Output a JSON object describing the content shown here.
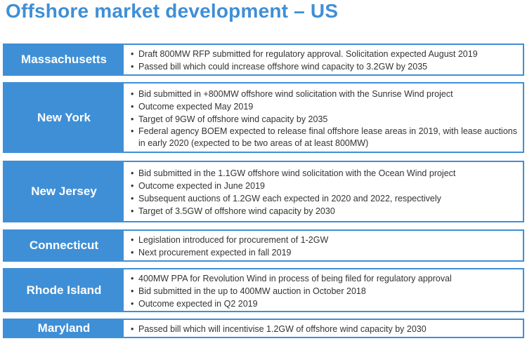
{
  "title": "Offshore market development – US",
  "accent_color": "#3f8fd6",
  "bullet_glyph": "•",
  "states": [
    {
      "name": "Massachusetts",
      "bullets": [
        "Draft 800MW RFP submitted for regulatory approval. Solicitation expected August 2019",
        "Passed bill which could increase offshore wind capacity to 3.2GW by 2035"
      ]
    },
    {
      "name": "New York",
      "bullets": [
        "Bid submitted in +800MW offshore wind solicitation with the Sunrise Wind project",
        "Outcome expected May 2019",
        "Target of 9GW of offshore wind capacity by 2035",
        "Federal agency BOEM expected to release final offshore lease areas in 2019, with lease auctions in early 2020 (expected to be two areas of at least 800MW)"
      ]
    },
    {
      "name": "New Jersey",
      "bullets": [
        "Bid submitted in the 1.1GW offshore wind solicitation with the Ocean Wind project",
        "Outcome expected in June 2019",
        "Subsequent auctions of 1.2GW each expected in 2020 and 2022, respectively",
        "Target of 3.5GW of offshore wind capacity by 2030"
      ]
    },
    {
      "name": "Connecticut",
      "bullets": [
        "Legislation introduced for procurement of 1-2GW",
        "Next procurement expected in fall 2019"
      ]
    },
    {
      "name": "Rhode Island",
      "bullets": [
        "400MW PPA for Revolution Wind in process of being filed for regulatory approval",
        "Bid submitted in the up to 400MW auction in October 2018",
        "Outcome expected in Q2 2019"
      ]
    },
    {
      "name": "Maryland",
      "bullets": [
        "Passed bill which will incentivise 1.2GW of offshore wind capacity by 2030"
      ]
    }
  ]
}
